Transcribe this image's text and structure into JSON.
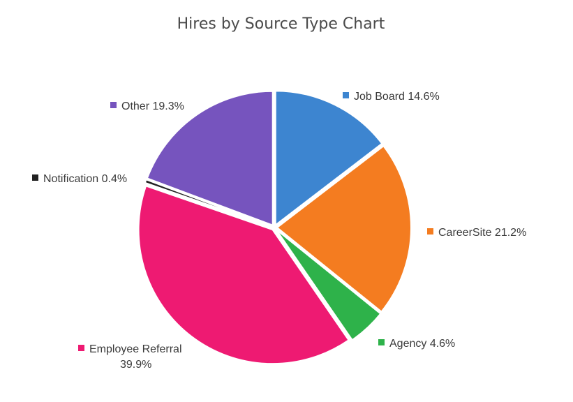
{
  "chart_data": {
    "type": "pie",
    "title": "Hires by Source Type Chart",
    "legend": "labels beside slices",
    "slices": [
      {
        "label": "Job Board",
        "value": 14.6,
        "display": "14.6%",
        "color": "#3d85d0"
      },
      {
        "label": "CareerSite",
        "value": 21.2,
        "display": "21.2%",
        "color": "#f47c20"
      },
      {
        "label": "Agency",
        "value": 4.6,
        "display": "4.6%",
        "color": "#2eb24a"
      },
      {
        "label": "Employee Referral",
        "value": 39.9,
        "display": "39.9%",
        "color": "#ee1a72"
      },
      {
        "label": "Notification",
        "value": 0.4,
        "display": "0.4%",
        "color": "#222222"
      },
      {
        "label": "Other",
        "value": 19.3,
        "display": "19.3%",
        "color": "#7654be"
      }
    ]
  }
}
